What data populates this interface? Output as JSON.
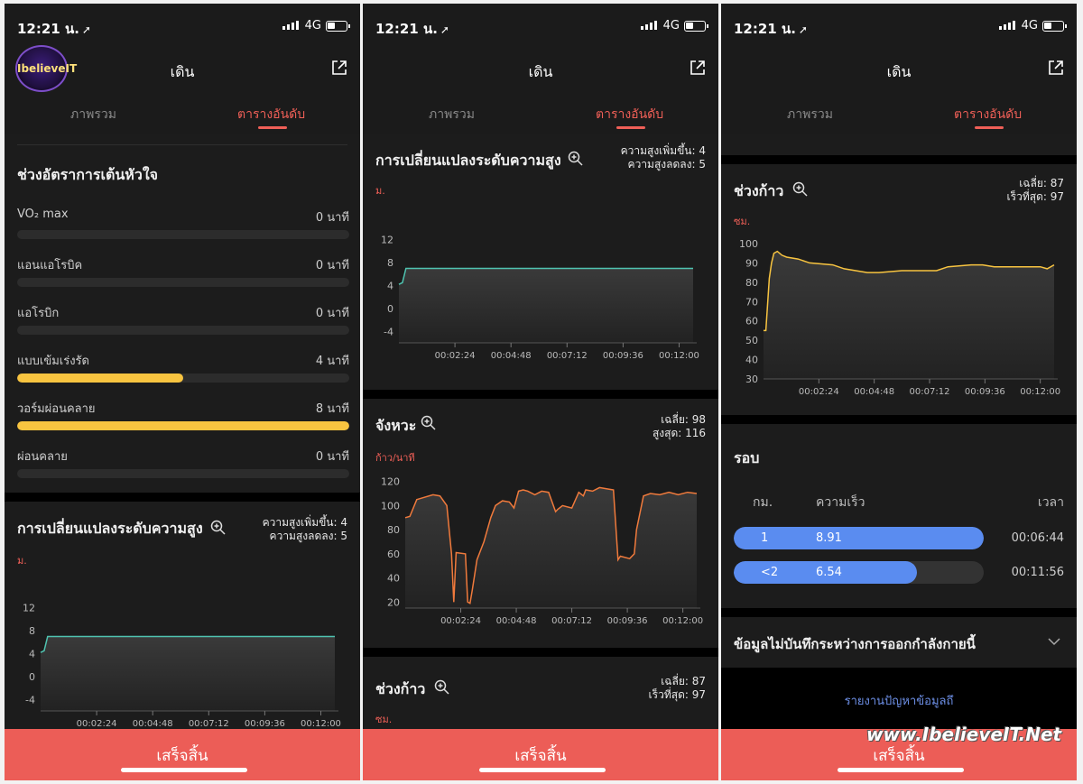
{
  "status": {
    "time": "12:21 น.",
    "network": "4G"
  },
  "nav": {
    "title": "เดิน"
  },
  "logo": {
    "text": "IbelieveIT"
  },
  "tabs": {
    "overview": "ภาพรวม",
    "table": "ตารางอันดับ"
  },
  "heart_zones": {
    "title": "ช่วงอัตราการเต้นหัวใจ",
    "items": [
      {
        "label": "VO₂ max",
        "value": "0",
        "unit": "นาที",
        "fraction": 0
      },
      {
        "label": "แอนแอโรบิค",
        "value": "0",
        "unit": "นาที",
        "fraction": 0
      },
      {
        "label": "แอโรบิก",
        "value": "0",
        "unit": "นาที",
        "fraction": 0
      },
      {
        "label": "แบบเข้มเร่งรัด",
        "value": "4",
        "unit": "นาที",
        "fraction": 0.5
      },
      {
        "label": "วอร์มผ่อนคลาย",
        "value": "8",
        "unit": "นาที",
        "fraction": 1.0
      },
      {
        "label": "ผ่อนคลาย",
        "value": "0",
        "unit": "นาที",
        "fraction": 0
      }
    ]
  },
  "altitude": {
    "title": "การเปลี่ยนแปลงระดับความสูง",
    "stat1": "ความสูงเพิ่มขึ้น: 4",
    "stat2": "ความสูงลดลง: 5",
    "unit": "ม."
  },
  "cadence": {
    "title": "จังหวะ",
    "stat1": "เฉลี่ย: 98",
    "stat2": "สูงสุด: 116",
    "unit": "ก้าว/นาที"
  },
  "stride": {
    "title": "ช่วงก้าว",
    "stat1": "เฉลี่ย: 87",
    "stat2": "เร็วที่สุด: 97",
    "unit": "ซม."
  },
  "laps": {
    "title": "รอบ",
    "col_km": "กม.",
    "col_speed": "ความเร็ว",
    "col_time": "เวลา",
    "rows": [
      {
        "km": "1",
        "speed": "8.91",
        "time": "00:06:44",
        "fraction": 1.0
      },
      {
        "km": "<2",
        "speed": "6.54",
        "time": "00:11:56",
        "fraction": 0.734
      }
    ]
  },
  "unrecorded": {
    "label": "ข้อมูลไม่บันทึกระหว่างการออกกำลังกายนี้"
  },
  "report": {
    "label": "รายงานปัญหาข้อมูลถึ"
  },
  "bottom": {
    "done": "เสร็จสิ้น"
  },
  "watermark": "www.IbelieveIT.Net",
  "chart_data": [
    {
      "type": "line",
      "name": "altitude",
      "x_ticks": [
        "00:02:24",
        "00:04:48",
        "00:07:12",
        "00:09:36",
        "00:12:00"
      ],
      "y_ticks": [
        12,
        8,
        4,
        0,
        -4
      ],
      "ylim": [
        -6,
        14
      ],
      "x_max_min": 12.6,
      "x": [
        0,
        0.15,
        0.3,
        12.6
      ],
      "y": [
        4.2,
        4.5,
        7,
        7
      ],
      "color": "#4fc3b0"
    },
    {
      "type": "line",
      "name": "cadence",
      "x_ticks": [
        "00:02:24",
        "00:04:48",
        "00:07:12",
        "00:09:36",
        "00:12:00"
      ],
      "y_ticks": [
        120,
        100,
        80,
        60,
        40,
        20
      ],
      "ylim": [
        15,
        125
      ],
      "x_max_min": 12.6,
      "x": [
        0,
        0.2,
        0.5,
        1.2,
        1.5,
        1.8,
        2.0,
        2.1,
        2.2,
        2.6,
        2.7,
        2.8,
        2.9,
        3.1,
        3.4,
        3.7,
        3.9,
        4.2,
        4.5,
        4.7,
        4.9,
        5.1,
        5.3,
        5.6,
        5.9,
        6.2,
        6.5,
        6.6,
        6.8,
        7.2,
        7.5,
        7.7,
        7.8,
        8.1,
        8.4,
        8.7,
        9.0,
        9.2,
        9.3,
        9.7,
        9.9,
        10.0,
        10.3,
        10.6,
        11.0,
        11.4,
        11.8,
        12.2,
        12.6
      ],
      "y": [
        90,
        91,
        105,
        109,
        108,
        100,
        60,
        20,
        61,
        60,
        20,
        19,
        30,
        55,
        70,
        90,
        100,
        104,
        103,
        98,
        112,
        113,
        112,
        109,
        112,
        111,
        95,
        97,
        100,
        98,
        111,
        108,
        113,
        112,
        115,
        114,
        113,
        55,
        58,
        56,
        60,
        80,
        108,
        110,
        109,
        111,
        109,
        111,
        110
      ],
      "color": "#f07a3c"
    },
    {
      "type": "line",
      "name": "stride",
      "x_ticks": [
        "00:02:24",
        "00:04:48",
        "00:07:12",
        "00:09:36",
        "00:12:00"
      ],
      "y_ticks": [
        100,
        90,
        80,
        70,
        60,
        50,
        40,
        30
      ],
      "ylim": [
        30,
        100
      ],
      "x_max_min": 12.6,
      "x": [
        0,
        0.1,
        0.25,
        0.35,
        0.45,
        0.6,
        0.8,
        1.0,
        1.5,
        2.0,
        3.0,
        3.5,
        4.0,
        4.5,
        5.0,
        6.0,
        7.0,
        7.5,
        8.0,
        9.0,
        9.5,
        10.0,
        11.0,
        12.0,
        12.3,
        12.6
      ],
      "y": [
        55,
        55,
        82,
        90,
        95,
        96,
        94,
        93,
        92,
        90,
        89,
        87,
        86,
        85,
        85,
        86,
        86,
        86,
        88,
        89,
        89,
        88,
        88,
        88,
        87,
        89
      ],
      "color": "#f8c440"
    }
  ]
}
